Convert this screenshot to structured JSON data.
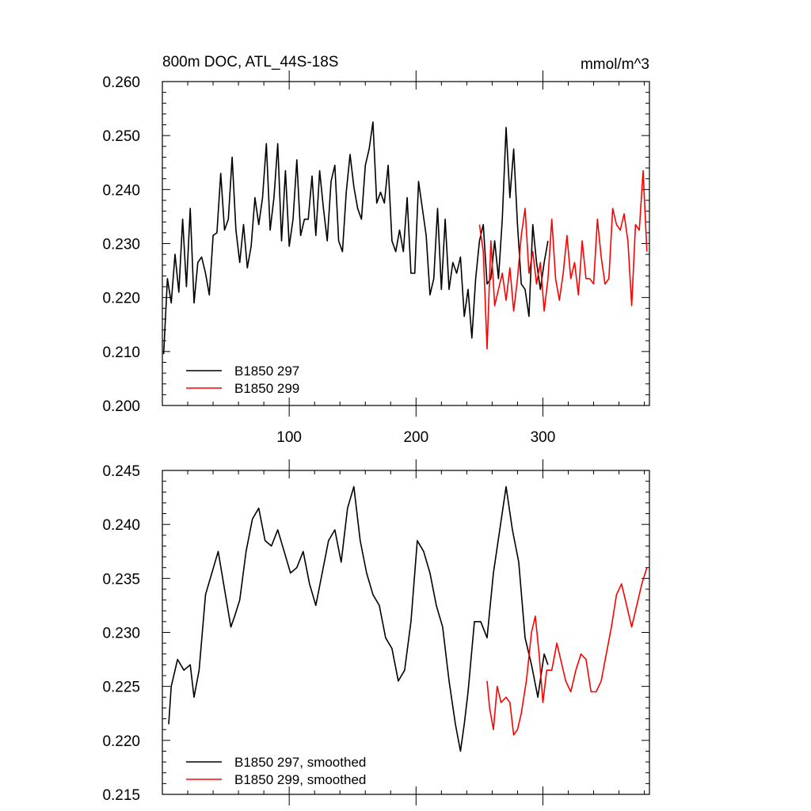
{
  "chart_data": [
    {
      "type": "line",
      "title": "800m DOC, ATL_44S-18S",
      "units": "mmol/m^3",
      "xlabel": "",
      "ylabel": "",
      "xlim": [
        0,
        384
      ],
      "ylim": [
        0.2,
        0.26
      ],
      "xticks": [
        100,
        200,
        300
      ],
      "xtick_labels": [
        "100",
        "200",
        "300"
      ],
      "yticks": [
        0.2,
        0.21,
        0.22,
        0.23,
        0.24,
        0.25,
        0.26
      ],
      "ytick_labels": [
        "0.200",
        "0.210",
        "0.220",
        "0.230",
        "0.240",
        "0.250",
        "0.260"
      ],
      "legend_position": "bottom-left",
      "series": [
        {
          "name": "B1850 297",
          "color": "#000000",
          "x": [
            1,
            4,
            7,
            10,
            13,
            16,
            19,
            22,
            25,
            28,
            31,
            34,
            37,
            40,
            43,
            46,
            49,
            52,
            55,
            58,
            61,
            64,
            67,
            70,
            73,
            76,
            79,
            82,
            85,
            88,
            91,
            94,
            97,
            100,
            103,
            106,
            109,
            112,
            115,
            118,
            121,
            124,
            127,
            130,
            133,
            136,
            139,
            142,
            145,
            148,
            151,
            154,
            157,
            160,
            163,
            166,
            169,
            172,
            175,
            178,
            181,
            184,
            187,
            190,
            193,
            196,
            199,
            202,
            205,
            208,
            211,
            214,
            217,
            220,
            223,
            226,
            229,
            232,
            235,
            238,
            241,
            244,
            247,
            250,
            253,
            256,
            259,
            262,
            265,
            268,
            271,
            274,
            277,
            280,
            283,
            286,
            289,
            292,
            295,
            298,
            301,
            304
          ],
          "values": [
            0.2095,
            0.2235,
            0.219,
            0.228,
            0.221,
            0.2345,
            0.222,
            0.2365,
            0.219,
            0.2265,
            0.2275,
            0.2245,
            0.2205,
            0.2315,
            0.232,
            0.243,
            0.2325,
            0.2345,
            0.246,
            0.2325,
            0.2265,
            0.2335,
            0.2255,
            0.2295,
            0.2385,
            0.2335,
            0.2385,
            0.2485,
            0.2325,
            0.2385,
            0.2485,
            0.2305,
            0.2435,
            0.2295,
            0.2345,
            0.2455,
            0.2315,
            0.2345,
            0.2345,
            0.2425,
            0.2315,
            0.2435,
            0.2365,
            0.2305,
            0.2415,
            0.2445,
            0.2305,
            0.2285,
            0.2395,
            0.2465,
            0.2405,
            0.2365,
            0.2345,
            0.2445,
            0.2475,
            0.2525,
            0.2375,
            0.2395,
            0.2375,
            0.2445,
            0.2305,
            0.2285,
            0.2325,
            0.2285,
            0.2385,
            0.2245,
            0.2245,
            0.2415,
            0.2365,
            0.2315,
            0.2205,
            0.2235,
            0.2365,
            0.2215,
            0.2345,
            0.2215,
            0.2265,
            0.2245,
            0.2275,
            0.2165,
            0.2215,
            0.2125,
            0.2235,
            0.2305,
            0.2335,
            0.2225,
            0.2235,
            0.2305,
            0.2235,
            0.2345,
            0.2515,
            0.2385,
            0.2475,
            0.2335,
            0.2225,
            0.2215,
            0.2165,
            0.2335,
            0.2265,
            0.2215,
            0.2265,
            0.2305
          ]
        },
        {
          "name": "B1850 299",
          "color": "#ff0000",
          "x": [
            250,
            253,
            256,
            259,
            262,
            265,
            268,
            271,
            274,
            277,
            280,
            283,
            286,
            289,
            292,
            295,
            298,
            301,
            304,
            307,
            310,
            313,
            316,
            319,
            322,
            325,
            328,
            331,
            334,
            337,
            340,
            343,
            346,
            349,
            352,
            355,
            358,
            361,
            364,
            367,
            370,
            373,
            376,
            379,
            382
          ],
          "values": [
            0.2335,
            0.2285,
            0.2105,
            0.2305,
            0.2185,
            0.2215,
            0.2245,
            0.2195,
            0.2255,
            0.2175,
            0.2235,
            0.2315,
            0.2365,
            0.2245,
            0.2285,
            0.2225,
            0.2265,
            0.2175,
            0.2235,
            0.2345,
            0.2235,
            0.2195,
            0.2245,
            0.2315,
            0.2235,
            0.2265,
            0.2205,
            0.2305,
            0.2235,
            0.2235,
            0.2225,
            0.2345,
            0.2275,
            0.2225,
            0.2235,
            0.2365,
            0.2335,
            0.2325,
            0.2355,
            0.2305,
            0.2185,
            0.2335,
            0.2325,
            0.2435,
            0.2285
          ]
        }
      ]
    },
    {
      "type": "line",
      "title": "",
      "xlabel": "",
      "ylabel": "",
      "xlim": [
        0,
        384
      ],
      "ylim": [
        0.215,
        0.245
      ],
      "xticks": [
        100,
        200,
        300
      ],
      "yticks": [
        0.215,
        0.22,
        0.225,
        0.23,
        0.235,
        0.24,
        0.245
      ],
      "ytick_labels": [
        "0.215",
        "0.220",
        "0.225",
        "0.230",
        "0.235",
        "0.240",
        "0.245"
      ],
      "legend_position": "bottom-left",
      "series": [
        {
          "name": "B1850 297, smoothed",
          "color": "#000000",
          "x": [
            5,
            7,
            12,
            17,
            22,
            25,
            29,
            34,
            39,
            44,
            49,
            54,
            57,
            61,
            66,
            71,
            76,
            81,
            86,
            91,
            96,
            101,
            106,
            111,
            116,
            121,
            126,
            131,
            136,
            141,
            146,
            151,
            156,
            161,
            166,
            171,
            176,
            181,
            186,
            191,
            196,
            201,
            206,
            211,
            216,
            221,
            226,
            231,
            235,
            238,
            241,
            246,
            251,
            256,
            261,
            266,
            271,
            276,
            281,
            286,
            291,
            296,
            301,
            304
          ],
          "values": [
            0.2215,
            0.225,
            0.2275,
            0.2265,
            0.227,
            0.224,
            0.2265,
            0.2335,
            0.2355,
            0.2375,
            0.234,
            0.2305,
            0.2315,
            0.233,
            0.2375,
            0.2405,
            0.2415,
            0.2385,
            0.238,
            0.2395,
            0.2375,
            0.2355,
            0.236,
            0.2375,
            0.2345,
            0.2325,
            0.2355,
            0.2385,
            0.2395,
            0.2365,
            0.2415,
            0.2435,
            0.2385,
            0.2355,
            0.2335,
            0.2325,
            0.2295,
            0.2285,
            0.2255,
            0.2265,
            0.231,
            0.2385,
            0.2375,
            0.2355,
            0.2325,
            0.2305,
            0.2255,
            0.2215,
            0.219,
            0.2215,
            0.2245,
            0.231,
            0.231,
            0.2295,
            0.2355,
            0.2395,
            0.2435,
            0.2395,
            0.2365,
            0.2295,
            0.227,
            0.224,
            0.228,
            0.227
          ]
        },
        {
          "name": "B1850 299, smoothed",
          "color": "#ff0000",
          "x": [
            256,
            258,
            261,
            264,
            267,
            271,
            274,
            277,
            280,
            283,
            287,
            291,
            294,
            297,
            300,
            303,
            307,
            311,
            314,
            318,
            322,
            326,
            330,
            334,
            338,
            342,
            346,
            350,
            354,
            358,
            362,
            366,
            370,
            374,
            378,
            382
          ],
          "values": [
            0.2255,
            0.223,
            0.221,
            0.225,
            0.2235,
            0.224,
            0.2235,
            0.2205,
            0.221,
            0.2225,
            0.2255,
            0.23,
            0.2315,
            0.228,
            0.2235,
            0.2265,
            0.2265,
            0.229,
            0.2275,
            0.2255,
            0.2245,
            0.2265,
            0.228,
            0.2275,
            0.2245,
            0.2245,
            0.2255,
            0.228,
            0.2305,
            0.2335,
            0.2345,
            0.2325,
            0.2305,
            0.2325,
            0.2345,
            0.236
          ]
        }
      ]
    }
  ]
}
